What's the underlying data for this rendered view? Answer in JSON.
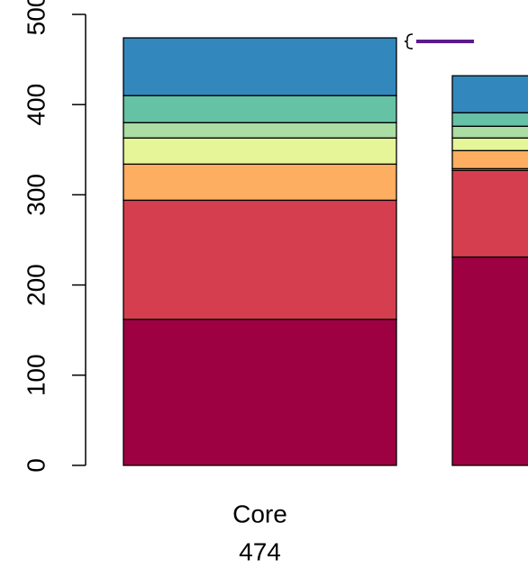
{
  "chart_data": {
    "type": "stacked_bar",
    "categories": [
      "Core",
      null
    ],
    "totals": [
      474,
      null
    ],
    "series": [
      {
        "color": "#9E0142",
        "values": [
          162,
          231
        ]
      },
      {
        "color": "#D53E4F",
        "values": [
          132,
          96
        ]
      },
      {
        "color": "#F46D43",
        "values": [
          0,
          2
        ]
      },
      {
        "color": "#FDAE61",
        "values": [
          40,
          20
        ]
      },
      {
        "color": "#FEE08B",
        "values": [
          0,
          0
        ]
      },
      {
        "color": "#E6F598",
        "values": [
          29,
          14
        ]
      },
      {
        "color": "#ABDDA4",
        "values": [
          17,
          13
        ]
      },
      {
        "color": "#66C2A5",
        "values": [
          30,
          15
        ]
      },
      {
        "color": "#3288BD",
        "values": [
          64,
          41
        ]
      }
    ],
    "ylim": [
      0,
      500
    ],
    "yticks": [
      0,
      100,
      200,
      300,
      400,
      500
    ]
  }
}
